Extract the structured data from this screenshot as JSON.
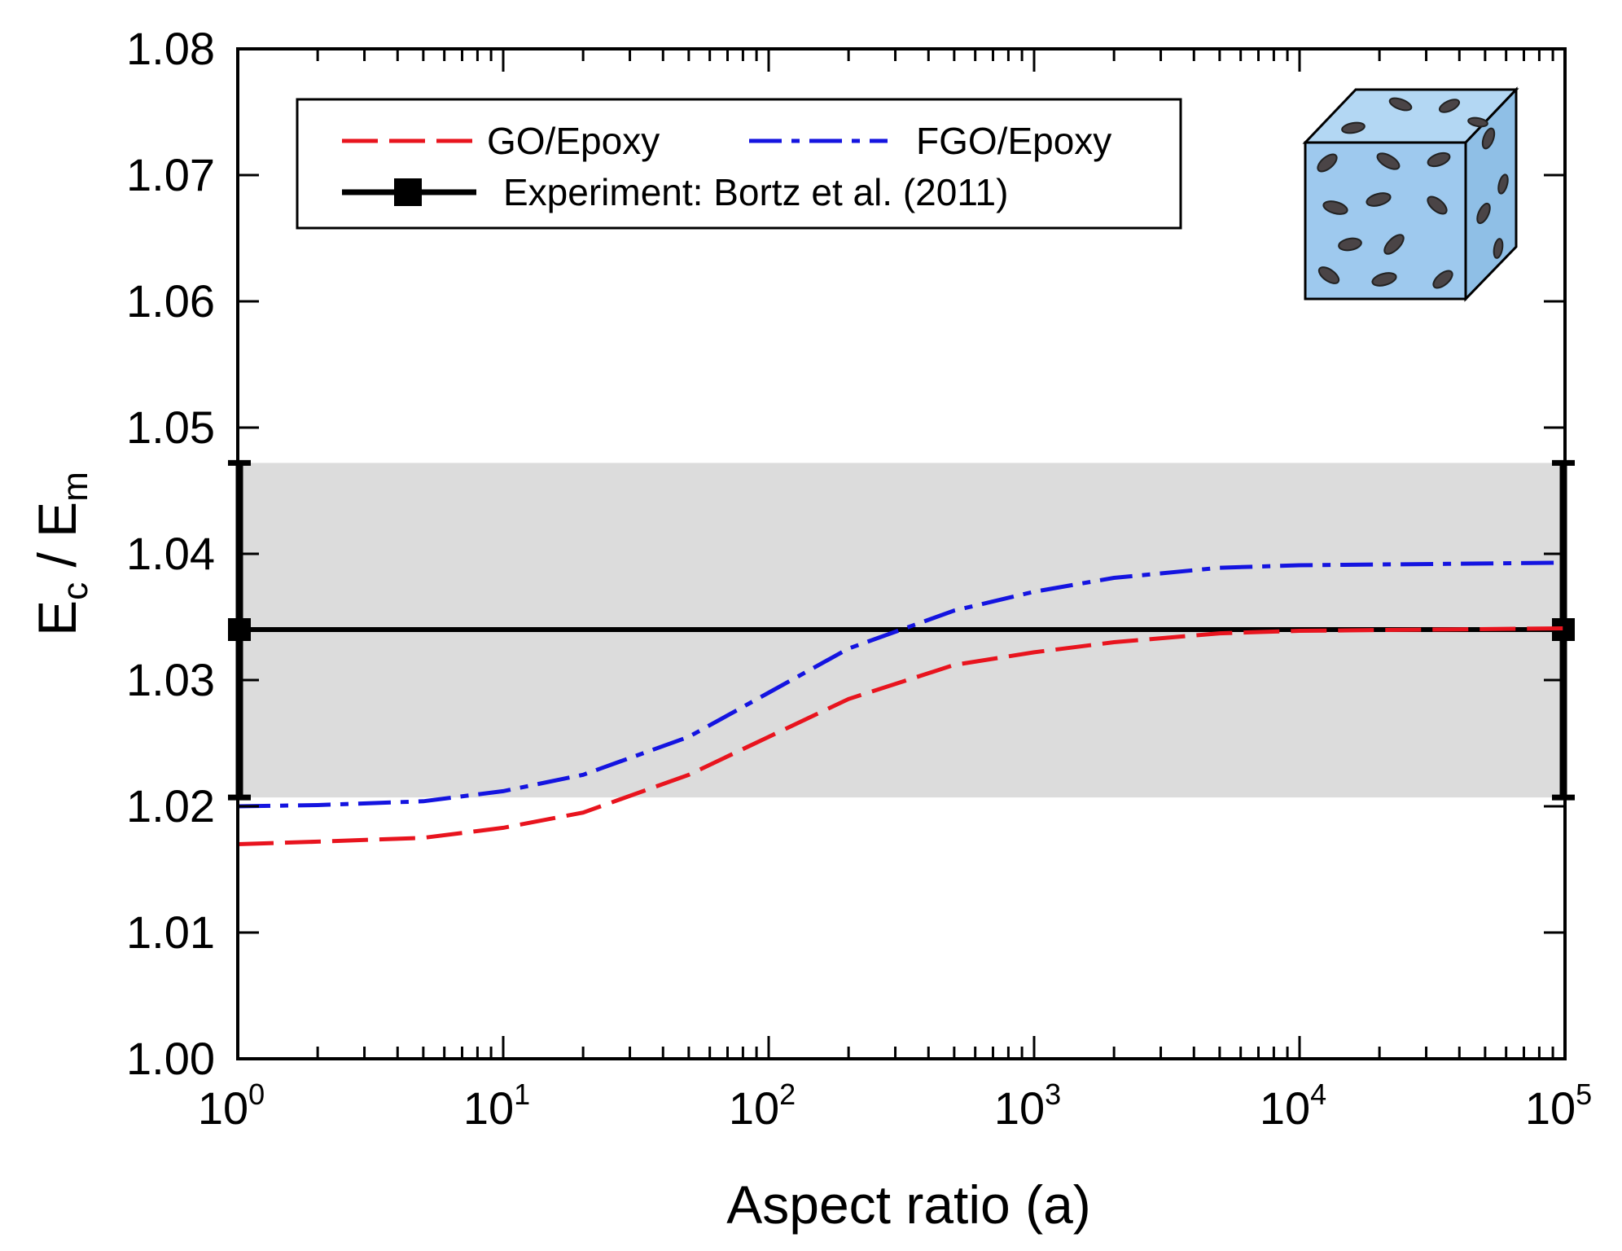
{
  "chart_data": {
    "type": "line",
    "title": "",
    "xlabel": "Aspect ratio (a)",
    "ylabel": {
      "E": "E",
      "c": "c",
      "slash": " / ",
      "E2": "E",
      "m": "m"
    },
    "x_scale": "log",
    "xlim": [
      1,
      100000
    ],
    "ylim": [
      1.0,
      1.08
    ],
    "x_ticks": [
      {
        "base": "10",
        "exp": "0"
      },
      {
        "base": "10",
        "exp": "1"
      },
      {
        "base": "10",
        "exp": "2"
      },
      {
        "base": "10",
        "exp": "3"
      },
      {
        "base": "10",
        "exp": "4"
      },
      {
        "base": "10",
        "exp": "5"
      }
    ],
    "y_ticks": [
      "1.00",
      "1.01",
      "1.02",
      "1.03",
      "1.04",
      "1.05",
      "1.06",
      "1.07",
      "1.08"
    ],
    "y_tick_values": [
      1.0,
      1.01,
      1.02,
      1.03,
      1.04,
      1.05,
      1.06,
      1.07,
      1.08
    ],
    "grid": false,
    "legend_position": "top-left",
    "series": [
      {
        "name": "GO/Epoxy",
        "color": "#e8141e",
        "dash": "dashed",
        "x": [
          1,
          2,
          5,
          10,
          20,
          50,
          100,
          200,
          500,
          1000,
          2000,
          5000,
          10000,
          100000
        ],
        "y": [
          1.017,
          1.0172,
          1.0175,
          1.0183,
          1.0195,
          1.0225,
          1.0255,
          1.0285,
          1.0312,
          1.0322,
          1.033,
          1.0337,
          1.0339,
          1.0341
        ]
      },
      {
        "name": "FGO/Epoxy",
        "color": "#1414e0",
        "dash": "dashdot",
        "x": [
          1,
          2,
          5,
          10,
          20,
          50,
          100,
          200,
          500,
          1000,
          2000,
          5000,
          10000,
          100000
        ],
        "y": [
          1.02,
          1.0201,
          1.0204,
          1.0212,
          1.0225,
          1.0255,
          1.029,
          1.0325,
          1.0355,
          1.037,
          1.0381,
          1.0389,
          1.0391,
          1.0393
        ]
      },
      {
        "name": "Experiment: Bortz et al. (2011)",
        "color": "#000000",
        "dash": "solid",
        "value": 1.034,
        "error_low": 1.0207,
        "error_high": 1.0472
      }
    ],
    "band_color": "#dcdcdc",
    "inset": {
      "description": "cube-icon",
      "face_color": "#9ec9ee"
    }
  }
}
